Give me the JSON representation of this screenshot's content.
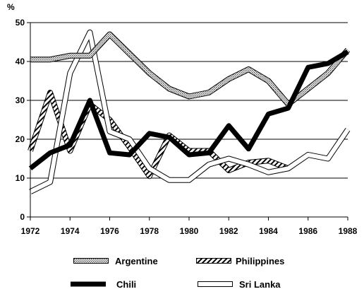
{
  "chart_data": {
    "type": "line",
    "ylabel": "%",
    "ylim": [
      0,
      50
    ],
    "xlim": [
      1972,
      1988
    ],
    "yticks": [
      0,
      10,
      20,
      30,
      40,
      50
    ],
    "xticks": [
      1972,
      1974,
      1976,
      1978,
      1980,
      1982,
      1984,
      1986,
      1988
    ],
    "grid": "horizontal",
    "legend_position": "bottom",
    "x": [
      1972,
      1973,
      1974,
      1975,
      1976,
      1977,
      1978,
      1979,
      1980,
      1981,
      1982,
      1983,
      1984,
      1985,
      1986,
      1987,
      1988
    ],
    "series": [
      {
        "name": "Argentine",
        "style": "dotted-band",
        "color": "#999999",
        "values": [
          40.5,
          40.5,
          41.5,
          41.5,
          47,
          42,
          37,
          33,
          31,
          32,
          35.5,
          38,
          35,
          29,
          33,
          37,
          43
        ]
      },
      {
        "name": "Philippines",
        "style": "hatched-band",
        "color": "#555555",
        "values": [
          17,
          32,
          17,
          29,
          25,
          18,
          10.5,
          21,
          17,
          17,
          12,
          14,
          14.5,
          12.5,
          null,
          null,
          null
        ]
      },
      {
        "name": "Chili",
        "style": "solid-thick",
        "color": "#000000",
        "values": [
          12.5,
          16.5,
          18.5,
          30,
          16.5,
          16,
          21.5,
          20.5,
          16,
          16.5,
          23.5,
          17.5,
          26.5,
          28,
          38.5,
          39.5,
          42.5
        ]
      },
      {
        "name": "Sri Lanka",
        "style": "hollow-band",
        "color": "#000000",
        "values": [
          6.5,
          9,
          37,
          47.5,
          22,
          20,
          12.5,
          9.5,
          9.5,
          13.5,
          15,
          13.5,
          11.5,
          12.5,
          16,
          15,
          22.5
        ]
      }
    ]
  }
}
